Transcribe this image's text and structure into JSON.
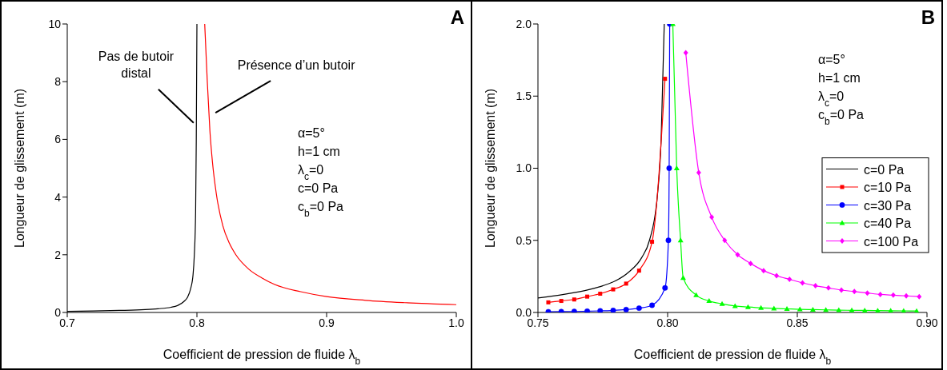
{
  "chart_data": [
    {
      "type": "line",
      "title": "A",
      "xlabel": "Coefficient de pression de fluide λ$_{b}$",
      "ylabel": "Longueur de glissement (m)",
      "xlim": [
        0.7,
        1.0
      ],
      "xticks": [
        0.7,
        0.8,
        0.9,
        {
          "value": 1.0,
          "label": "1.0"
        }
      ],
      "ylim": [
        0,
        10
      ],
      "yticks": [
        0,
        2,
        4,
        6,
        8,
        10
      ],
      "grid": false,
      "legend": false,
      "series": [
        {
          "color": "#000000",
          "marker": "none",
          "x": [
            0.7,
            0.72,
            0.74,
            0.76,
            0.77,
            0.78,
            0.785,
            0.79,
            0.793,
            0.795,
            0.797,
            0.798,
            0.799,
            0.7995,
            0.8
          ],
          "values": [
            0.04,
            0.05,
            0.07,
            0.1,
            0.13,
            0.18,
            0.24,
            0.38,
            0.55,
            0.8,
            1.3,
            2,
            3.5,
            6,
            10
          ]
        },
        {
          "color": "#ff0000",
          "marker": "none",
          "x": [
            0.806,
            0.808,
            0.81,
            0.812,
            0.815,
            0.82,
            0.825,
            0.83,
            0.84,
            0.85,
            0.86,
            0.88,
            0.9,
            0.93,
            0.96,
            1.0
          ],
          "values": [
            10,
            8,
            6.3,
            5.2,
            4.1,
            3,
            2.4,
            2,
            1.5,
            1.2,
            0.97,
            0.72,
            0.55,
            0.42,
            0.34,
            0.27
          ]
        }
      ],
      "annotations": [
        {
          "text": "Pas de butoir\ndistal",
          "x": 0.7985,
          "y": 6.5
        },
        {
          "text": "Présence d’un butoir",
          "x": 0.8115,
          "y": 6.9
        },
        "α=5°",
        "h=1 cm",
        "λ$_{c}$=0",
        "c=0 Pa",
        "c$_{b}$=0 Pa"
      ]
    },
    {
      "type": "line",
      "title": "B",
      "xlabel": "Coefficient de pression de fluide λ$_{b}$",
      "ylabel": "Longueur de glissement (m)",
      "xlim": [
        0.75,
        0.9
      ],
      "xticks": [
        0.75,
        {
          "value": 0.8,
          "label": "0.80"
        },
        0.85,
        {
          "value": 0.9,
          "label": "0.90"
        }
      ],
      "ylim": [
        0,
        2
      ],
      "yticks": [
        {
          "value": 0,
          "label": "0.0"
        },
        0.5,
        {
          "value": 1,
          "label": "1.0"
        },
        1.5,
        {
          "value": 2,
          "label": "2.0"
        }
      ],
      "grid": false,
      "legend": "right",
      "series": [
        {
          "name": "c=0 Pa",
          "color": "#000000",
          "marker": "none",
          "x": [
            0.75,
            0.76,
            0.77,
            0.775,
            0.78,
            0.785,
            0.79,
            0.793,
            0.796,
            0.7975,
            0.7987
          ],
          "values": [
            0.1,
            0.125,
            0.16,
            0.185,
            0.22,
            0.28,
            0.38,
            0.5,
            0.8,
            1.2,
            2.0
          ]
        },
        {
          "name": "c=10 Pa",
          "color": "#ff0000",
          "marker": "square",
          "x": [
            0.754,
            0.759,
            0.764,
            0.769,
            0.774,
            0.779,
            0.784,
            0.789,
            0.794,
            0.799
          ],
          "values": [
            0.07,
            0.08,
            0.09,
            0.11,
            0.13,
            0.16,
            0.2,
            0.29,
            0.49,
            1.62
          ]
        },
        {
          "name": "c=30 Pa",
          "color": "#0000ff",
          "marker": "circle",
          "x": [
            0.754,
            0.759,
            0.764,
            0.769,
            0.774,
            0.779,
            0.784,
            0.789,
            0.794,
            0.799,
            0.8003,
            0.8006,
            0.8008
          ],
          "values": [
            0.005,
            0.006,
            0.007,
            0.009,
            0.011,
            0.014,
            0.02,
            0.03,
            0.05,
            0.17,
            0.5,
            1.0,
            2.0
          ]
        },
        {
          "name": "c=40 Pa",
          "color": "#00ff00",
          "marker": "triangle",
          "x": [
            0.802,
            0.8035,
            0.805,
            0.806,
            0.811,
            0.816,
            0.821,
            0.826,
            0.831,
            0.836,
            0.841,
            0.846,
            0.851,
            0.856,
            0.861,
            0.866,
            0.871,
            0.876,
            0.881,
            0.886,
            0.891,
            0.896
          ],
          "values": [
            2.0,
            1.0,
            0.5,
            0.24,
            0.12,
            0.08,
            0.06,
            0.045,
            0.038,
            0.032,
            0.028,
            0.025,
            0.022,
            0.02,
            0.018,
            0.016,
            0.015,
            0.014,
            0.013,
            0.012,
            0.011,
            0.01
          ]
        },
        {
          "name": "c=100 Pa",
          "color": "#ff00ff",
          "marker": "diamond",
          "x": [
            0.807,
            0.812,
            0.817,
            0.822,
            0.827,
            0.832,
            0.837,
            0.842,
            0.847,
            0.852,
            0.857,
            0.862,
            0.867,
            0.872,
            0.877,
            0.882,
            0.887,
            0.892,
            0.897
          ],
          "values": [
            1.8,
            0.97,
            0.66,
            0.5,
            0.4,
            0.34,
            0.29,
            0.255,
            0.23,
            0.205,
            0.185,
            0.17,
            0.155,
            0.145,
            0.135,
            0.125,
            0.12,
            0.115,
            0.11
          ]
        }
      ],
      "annotations": [
        "α=5°",
        "h=1 cm",
        "λ$_{c}$=0",
        "c$_{b}$=0 Pa"
      ]
    }
  ]
}
